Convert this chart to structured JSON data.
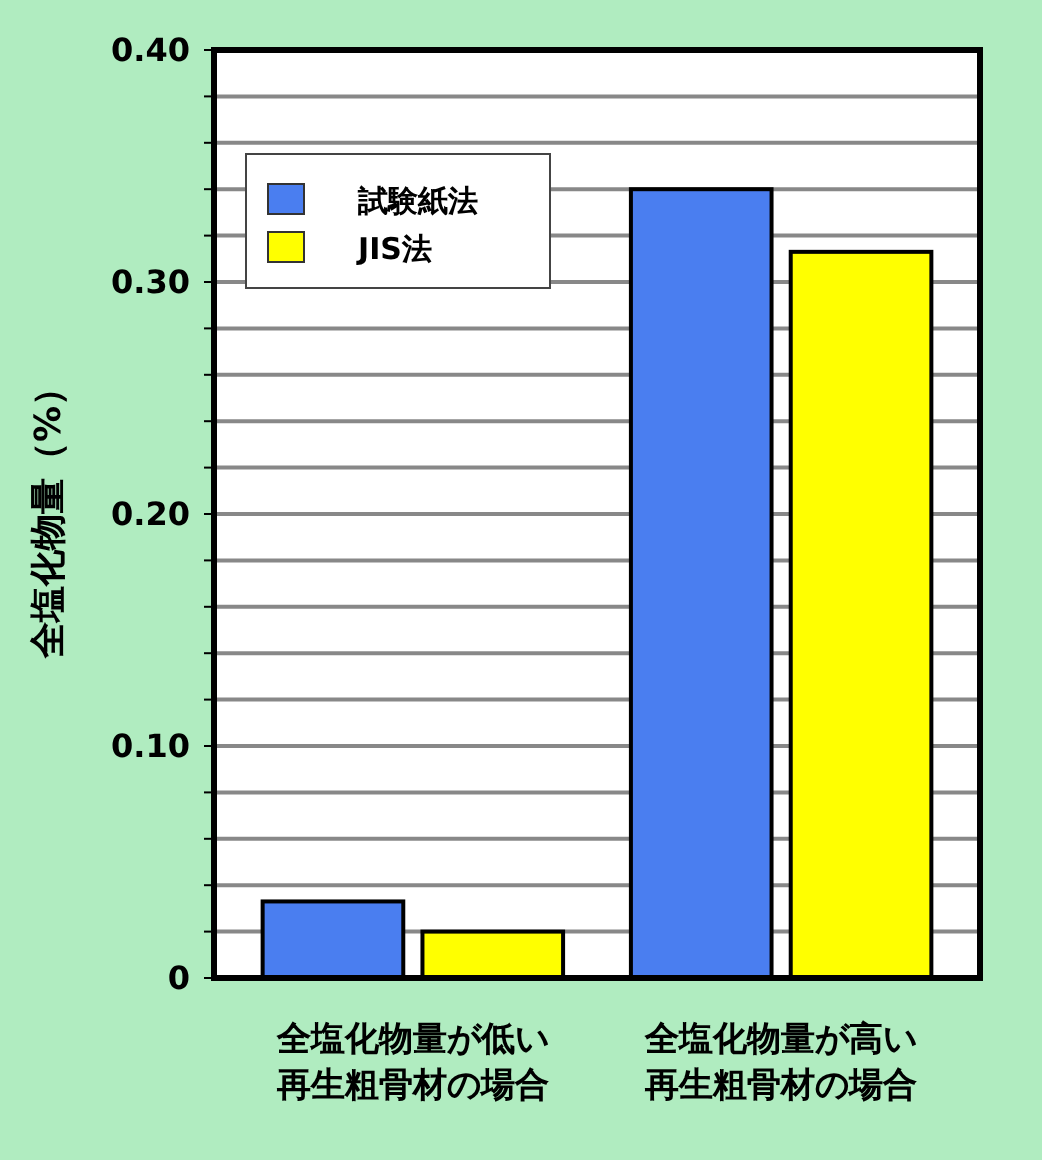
{
  "chart_data": {
    "type": "bar",
    "ylabel": "全塩化物量（%）",
    "categories": [
      "全塩化物量が低い再生粗骨材の場合",
      "全塩化物量が高い再生粗骨材の場合"
    ],
    "series": [
      {
        "name": "試験紙法",
        "color": "#4a7ef0",
        "values": [
          0.033,
          0.34
        ]
      },
      {
        "name": "JIS法",
        "color": "#ffff00",
        "values": [
          0.02,
          0.313
        ]
      }
    ],
    "ylim": [
      0,
      0.4
    ],
    "yticks": [
      0,
      {
        "value": 0.02,
        "label": null
      },
      {
        "value": 0.04,
        "label": null
      },
      {
        "value": 0.06,
        "label": null
      },
      {
        "value": 0.08,
        "label": null
      },
      {
        "value": 0.1,
        "label": "0.10"
      },
      {
        "value": 0.12,
        "label": null
      },
      {
        "value": 0.14,
        "label": null
      },
      {
        "value": 0.16,
        "label": null
      },
      {
        "value": 0.18,
        "label": null
      },
      {
        "value": 0.2,
        "label": "0.20"
      },
      {
        "value": 0.22,
        "label": null
      },
      {
        "value": 0.24,
        "label": null
      },
      {
        "value": 0.26,
        "label": null
      },
      {
        "value": 0.28,
        "label": null
      },
      {
        "value": 0.3,
        "label": "0.30"
      },
      {
        "value": 0.32,
        "label": null
      },
      {
        "value": 0.34,
        "label": null
      },
      {
        "value": 0.36,
        "label": null
      },
      {
        "value": 0.38,
        "label": null
      },
      {
        "value": 0.4,
        "label": "0.40"
      }
    ],
    "grid": "y",
    "legend": "top left"
  }
}
